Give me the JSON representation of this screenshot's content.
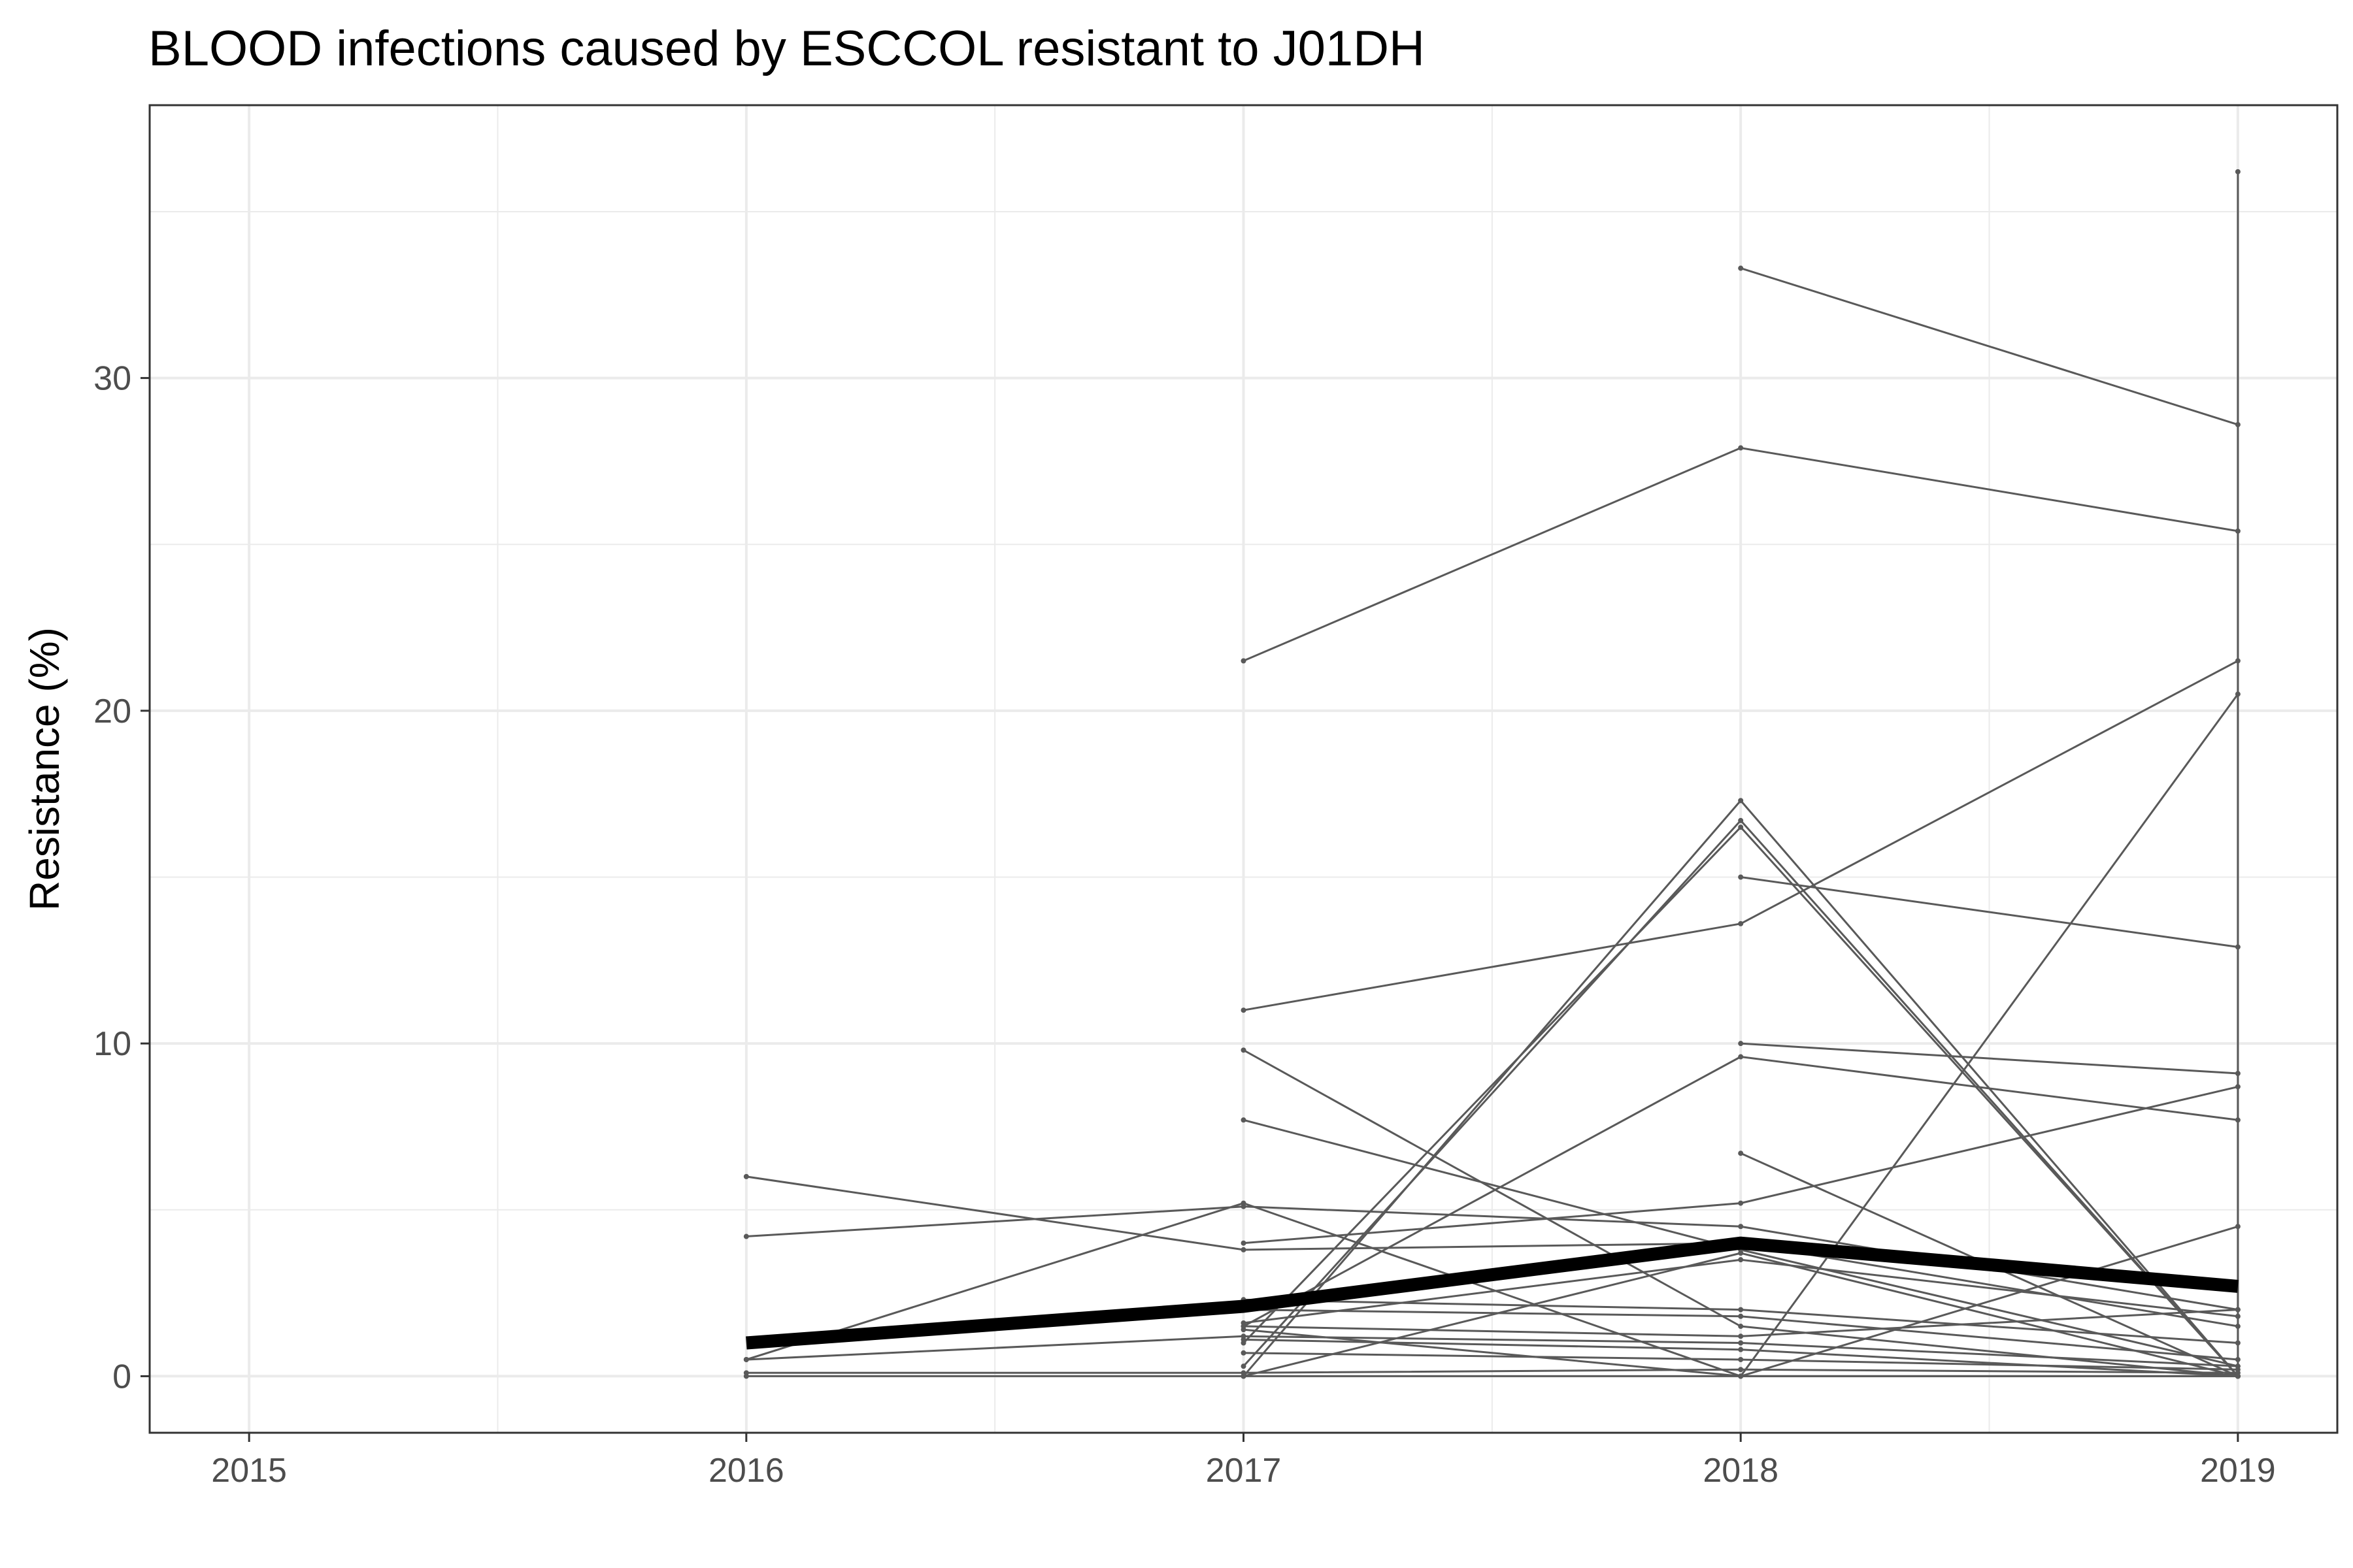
{
  "chart_data": {
    "type": "line",
    "title": "BLOOD infections caused by ESCCOL resistant to J01DH",
    "xlabel": "",
    "ylabel": "Resistance (%)",
    "xlim": [
      2014.8,
      2019.2
    ],
    "ylim": [
      -1.7,
      38.2
    ],
    "x_ticks": [
      2015,
      2016,
      2017,
      2018,
      2019
    ],
    "y_ticks": [
      0,
      10,
      20,
      30
    ],
    "grid": true,
    "legend": "none",
    "colors": {
      "thin_series": "#595959",
      "mean_series": "#000000",
      "grid": "#ebebeb",
      "panel_border": "#333333"
    },
    "thin_series": [
      {
        "x": [
          2018,
          2019
        ],
        "y": [
          33.3,
          28.6
        ]
      },
      {
        "x": [
          2017,
          2018,
          2019
        ],
        "y": [
          21.5,
          27.9,
          25.4
        ]
      },
      {
        "x": [
          2017,
          2018,
          2019
        ],
        "y": [
          11.0,
          13.6,
          21.5
        ]
      },
      {
        "x": [
          2018,
          2019
        ],
        "y": [
          15.0,
          12.9
        ]
      },
      {
        "x": [
          2017,
          2018,
          2019
        ],
        "y": [
          0.0,
          17.3,
          0.0
        ]
      },
      {
        "x": [
          2017,
          2018,
          2019
        ],
        "y": [
          0.3,
          16.7,
          0.0
        ]
      },
      {
        "x": [
          2017,
          2018,
          2019
        ],
        "y": [
          1.0,
          16.5,
          0.0
        ]
      },
      {
        "x": [
          2017,
          2018,
          2019
        ],
        "y": [
          1.5,
          9.6,
          7.7
        ]
      },
      {
        "x": [
          2017,
          2018,
          2019
        ],
        "y": [
          9.8,
          1.5,
          0.0
        ]
      },
      {
        "x": [
          2017,
          2018,
          2019
        ],
        "y": [
          7.7,
          3.8,
          0.3
        ]
      },
      {
        "x": [
          2018,
          2019
        ],
        "y": [
          6.7,
          0.0
        ]
      },
      {
        "x": [
          2016,
          2017,
          2018,
          2019
        ],
        "y": [
          6.0,
          3.8,
          4.0,
          1.5
        ]
      },
      {
        "x": [
          2016,
          2017,
          2018,
          2019
        ],
        "y": [
          4.2,
          5.1,
          4.5,
          2.0
        ]
      },
      {
        "x": [
          2016,
          2017,
          2018,
          2019
        ],
        "y": [
          0.5,
          5.2,
          0.0,
          0.0
        ]
      },
      {
        "x": [
          2017,
          2018,
          2019
        ],
        "y": [
          4.0,
          5.2,
          8.7
        ]
      },
      {
        "x": [
          2017,
          2018,
          2019
        ],
        "y": [
          2.3,
          2.0,
          1.0
        ]
      },
      {
        "x": [
          2017,
          2018,
          2019
        ],
        "y": [
          2.0,
          1.8,
          0.5
        ]
      },
      {
        "x": [
          2016,
          2017,
          2018,
          2019
        ],
        "y": [
          0.5,
          1.2,
          1.0,
          0.3
        ]
      },
      {
        "x": [
          2017,
          2018,
          2019
        ],
        "y": [
          1.6,
          3.5,
          1.8
        ]
      },
      {
        "x": [
          2017,
          2018,
          2019
        ],
        "y": [
          1.4,
          0.0,
          4.5
        ]
      },
      {
        "x": [
          2017,
          2018,
          2019
        ],
        "y": [
          0.7,
          0.5,
          0.2
        ]
      },
      {
        "x": [
          2017,
          2018,
          2019
        ],
        "y": [
          0.0,
          3.7,
          0.0
        ]
      },
      {
        "x": [
          2017,
          2018,
          2019
        ],
        "y": [
          1.1,
          0.8,
          0.0
        ]
      },
      {
        "x": [
          2016,
          2017,
          2018,
          2019
        ],
        "y": [
          0.0,
          0.0,
          0.0,
          0.0
        ]
      },
      {
        "x": [
          2016,
          2017,
          2018,
          2019
        ],
        "y": [
          0.1,
          0.1,
          0.2,
          0.1
        ]
      },
      {
        "x": [
          2017,
          2018,
          2019
        ],
        "y": [
          1.5,
          1.2,
          2.0
        ]
      },
      {
        "x": [
          2018,
          2019
        ],
        "y": [
          10.0,
          9.1
        ]
      },
      {
        "x": [
          2018,
          2019
        ],
        "y": [
          0.0,
          20.5
        ]
      },
      {
        "x": [
          2019,
          2019
        ],
        "y": [
          0.0,
          36.2
        ]
      }
    ],
    "mean_series": {
      "x": [
        2016,
        2017,
        2018,
        2019
      ],
      "y": [
        1.0,
        2.1,
        4.0,
        2.7
      ]
    }
  }
}
